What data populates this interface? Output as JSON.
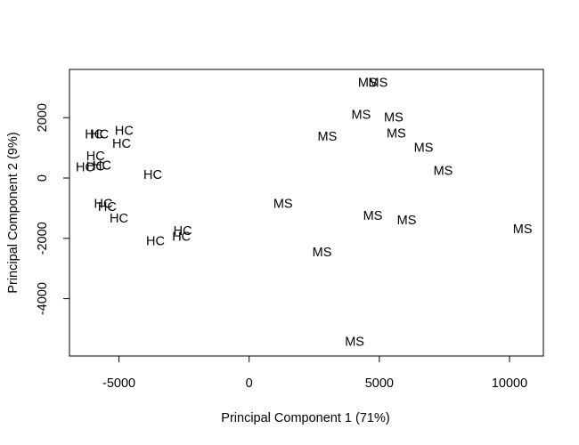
{
  "chart_data": {
    "type": "scatter",
    "title": "",
    "xlabel": "Principal Component 1 (71%)",
    "ylabel": "Principal Component 2 (9%)",
    "xlim": [
      -6900,
      11300
    ],
    "ylim": [
      -5900,
      3600
    ],
    "xticks": [
      -5000,
      0,
      5000,
      10000
    ],
    "yticks": [
      -4000,
      -2000,
      0,
      2000
    ],
    "grid": false,
    "point_style": "text-labels",
    "groups": [
      "HC",
      "MS"
    ],
    "points": [
      {
        "label": "HC",
        "x": -5950,
        "y": 1420
      },
      {
        "label": "HC",
        "x": -5750,
        "y": 1420
      },
      {
        "label": "HC",
        "x": -4800,
        "y": 1540
      },
      {
        "label": "HC",
        "x": -4900,
        "y": 1120
      },
      {
        "label": "HC",
        "x": -5900,
        "y": 700
      },
      {
        "label": "HC",
        "x": -6300,
        "y": 330
      },
      {
        "label": "HC",
        "x": -5900,
        "y": 360
      },
      {
        "label": "HC",
        "x": -5650,
        "y": 400
      },
      {
        "label": "HC",
        "x": -3700,
        "y": 80
      },
      {
        "label": "HC",
        "x": -5600,
        "y": -880
      },
      {
        "label": "HC",
        "x": -5450,
        "y": -980
      },
      {
        "label": "HC",
        "x": -5000,
        "y": -1360
      },
      {
        "label": "HC",
        "x": -3600,
        "y": -2110
      },
      {
        "label": "HC",
        "x": -2550,
        "y": -1780
      },
      {
        "label": "HC",
        "x": -2600,
        "y": -1970
      },
      {
        "label": "MS",
        "x": 4550,
        "y": 3140
      },
      {
        "label": "MS",
        "x": 4950,
        "y": 3140
      },
      {
        "label": "MS",
        "x": 4300,
        "y": 2070
      },
      {
        "label": "MS",
        "x": 5550,
        "y": 1980
      },
      {
        "label": "MS",
        "x": 3000,
        "y": 1350
      },
      {
        "label": "MS",
        "x": 5650,
        "y": 1450
      },
      {
        "label": "MS",
        "x": 6700,
        "y": 990
      },
      {
        "label": "MS",
        "x": 7450,
        "y": 220
      },
      {
        "label": "MS",
        "x": 1300,
        "y": -880
      },
      {
        "label": "MS",
        "x": 4750,
        "y": -1280
      },
      {
        "label": "MS",
        "x": 6050,
        "y": -1420
      },
      {
        "label": "MS",
        "x": 10500,
        "y": -1720
      },
      {
        "label": "MS",
        "x": 2800,
        "y": -2480
      },
      {
        "label": "MS",
        "x": 4050,
        "y": -5450
      }
    ]
  }
}
